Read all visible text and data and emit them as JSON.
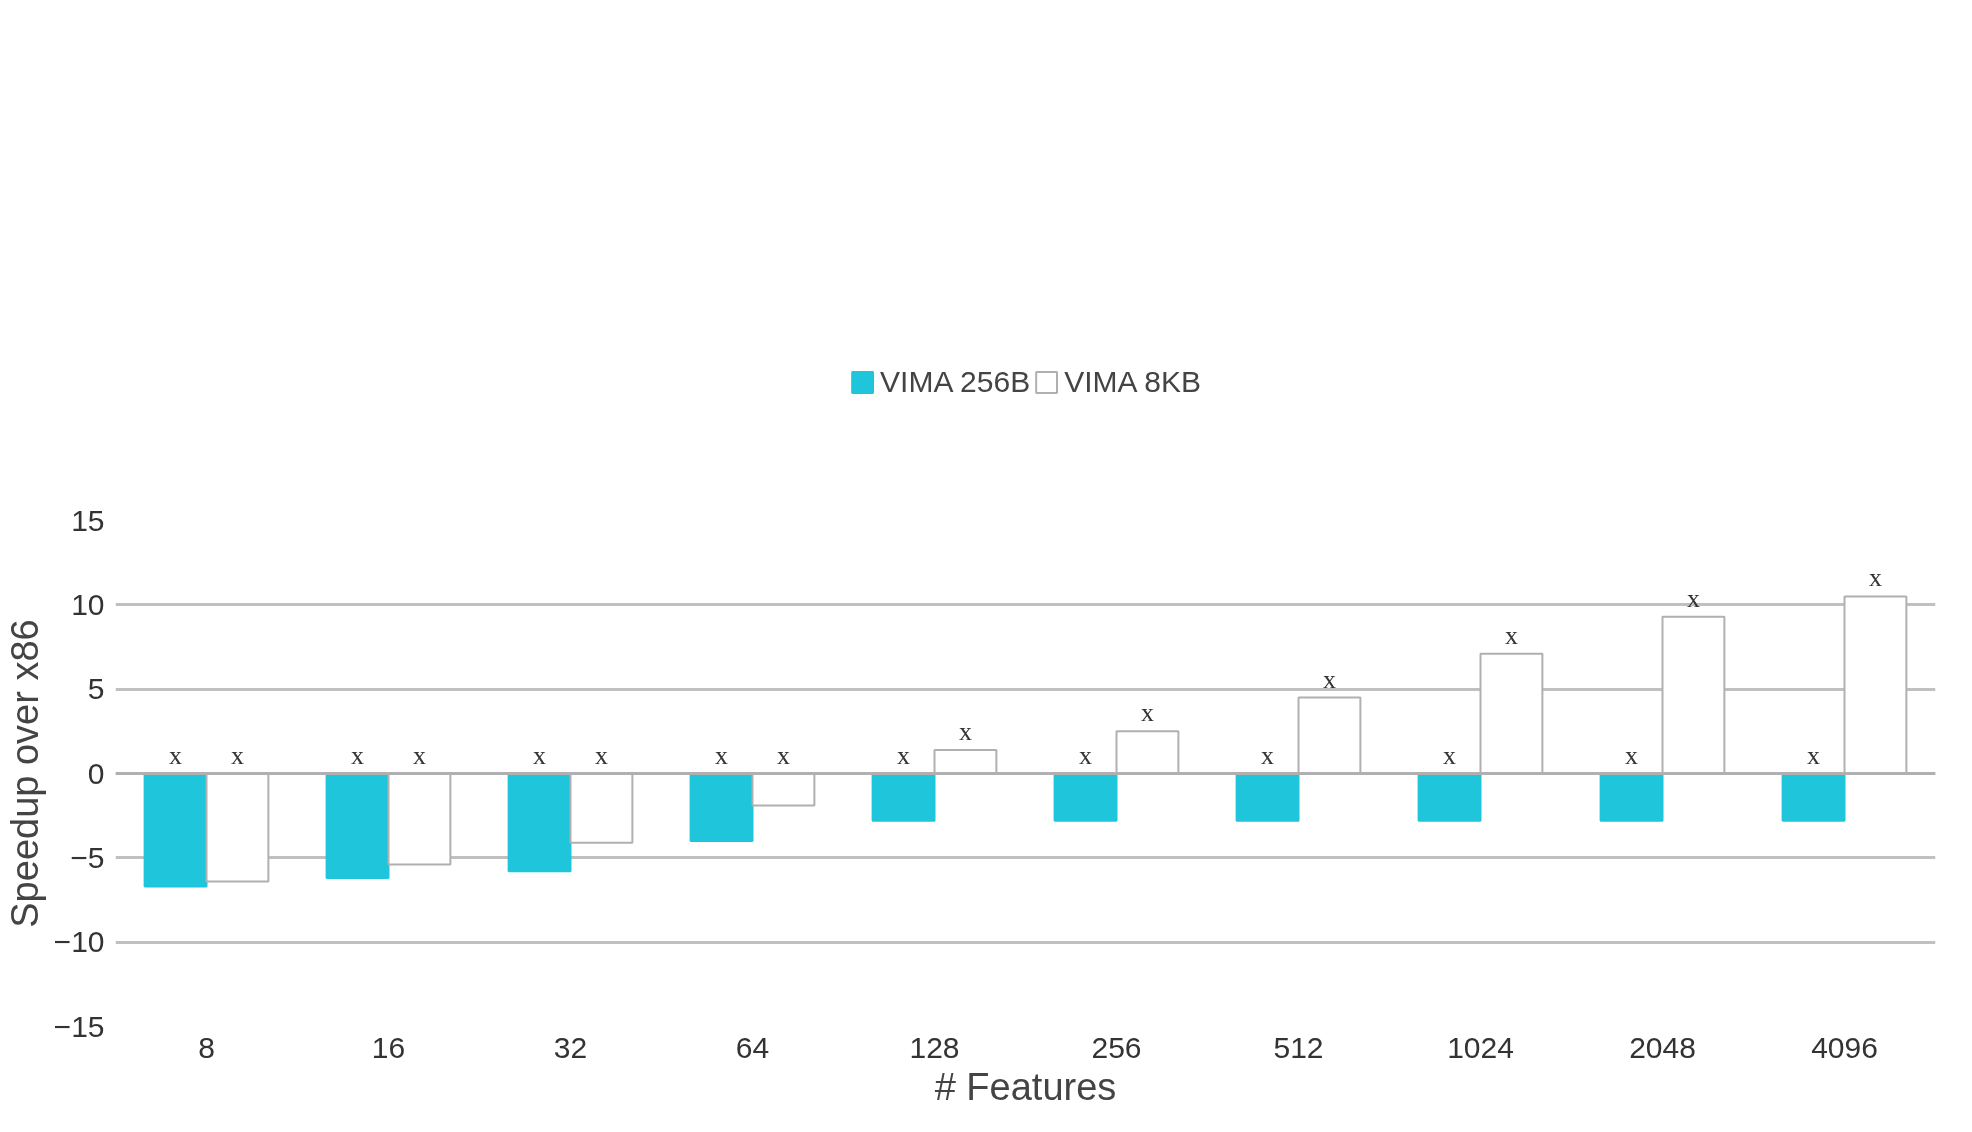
{
  "chart_data": {
    "type": "bar",
    "xlabel": "# Features",
    "ylabel": "Speedup over x86",
    "categories": [
      "8",
      "16",
      "32",
      "64",
      "128",
      "256",
      "512",
      "1024",
      "2048",
      "4096"
    ],
    "series": [
      {
        "name": "VIMA 256B",
        "color": "#1fc5db",
        "values": [
          -6.7,
          -6.2,
          -5.8,
          -4.0,
          -2.8,
          -2.8,
          -2.8,
          -2.8,
          -2.8,
          -2.8
        ],
        "value_labels": [
          "x",
          "x",
          "x",
          "x",
          "x",
          "x",
          "x",
          "x",
          "x",
          "x"
        ]
      },
      {
        "name": "VIMA 8KB",
        "color": "#ffffff",
        "values": [
          -6.4,
          -5.4,
          -4.1,
          -1.9,
          1.4,
          2.5,
          4.5,
          7.1,
          9.3,
          10.5
        ],
        "value_labels": [
          "x",
          "x",
          "x",
          "x",
          "x",
          "x",
          "x",
          "x",
          "x",
          "x"
        ]
      }
    ],
    "ylim": [
      -15,
      15
    ],
    "yticks": [
      -15,
      -10,
      -5,
      0,
      5,
      10,
      15
    ],
    "grid": "y",
    "legend": "top"
  }
}
